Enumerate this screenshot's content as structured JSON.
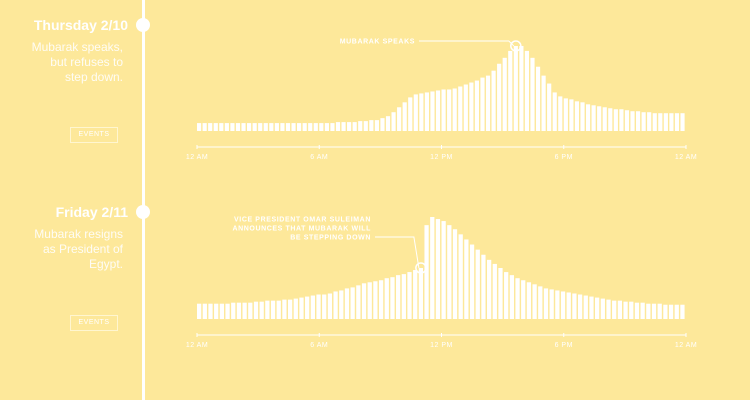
{
  "days": [
    {
      "title": "Thursday 2/10",
      "description": "Mubarak speaks, but refuses to step down.",
      "events_label": "EVENTS"
    },
    {
      "title": "Friday 2/11",
      "description": "Mubarak resigns as President of Egypt.",
      "events_label": "EVENTS"
    }
  ],
  "chart_data": [
    {
      "type": "bar",
      "xlabel": "",
      "ylabel": "",
      "x_tick_labels": [
        "12 AM",
        "6 AM",
        "12 PM",
        "6 PM",
        "12 AM"
      ],
      "values": [
        8,
        8,
        8,
        8,
        8,
        8,
        8,
        8,
        8,
        8,
        8,
        8,
        8,
        8,
        8,
        8,
        8,
        8,
        8,
        8,
        8,
        8,
        8,
        8,
        8,
        9,
        9,
        9,
        9,
        10,
        10,
        11,
        11,
        13,
        15,
        19,
        24,
        29,
        34,
        37,
        38,
        39,
        40,
        41,
        42,
        42,
        43,
        45,
        47,
        49,
        51,
        54,
        56,
        61,
        68,
        74,
        81,
        86,
        86,
        81,
        74,
        65,
        56,
        48,
        39,
        35,
        33,
        32,
        30,
        29,
        27,
        26,
        25,
        24,
        23,
        22,
        22,
        21,
        20,
        20,
        19,
        19,
        18,
        18,
        18,
        18,
        18,
        18
      ],
      "ylim": [
        0,
        90
      ],
      "annotation": {
        "text": "MUBARAK SPEAKS",
        "index": 57
      },
      "colors": {
        "bars": "#ffffff",
        "background": "#fde89a"
      }
    },
    {
      "type": "bar",
      "xlabel": "",
      "ylabel": "",
      "x_tick_labels": [
        "12 AM",
        "6 AM",
        "12 PM",
        "6 PM",
        "12 AM"
      ],
      "values": [
        15,
        15,
        15,
        15,
        15,
        15,
        16,
        16,
        16,
        16,
        17,
        17,
        18,
        18,
        18,
        19,
        19,
        20,
        21,
        22,
        23,
        24,
        24,
        25,
        27,
        28,
        30,
        31,
        33,
        35,
        36,
        37,
        38,
        40,
        41,
        43,
        44,
        46,
        48,
        50,
        92,
        100,
        98,
        96,
        92,
        88,
        83,
        78,
        73,
        68,
        63,
        58,
        54,
        50,
        46,
        43,
        40,
        38,
        36,
        34,
        32,
        30,
        29,
        28,
        27,
        26,
        25,
        24,
        23,
        22,
        21,
        20,
        19,
        18,
        18,
        17,
        17,
        16,
        16,
        15,
        15,
        15,
        14,
        14,
        14,
        14
      ],
      "ylim": [
        0,
        100
      ],
      "annotation": {
        "text_lines": [
          "VICE PRESIDENT OMAR SULEIMAN",
          "ANNOUNCES THAT MUBARAK WILL",
          "BE STEPPING DOWN"
        ],
        "index": 39
      },
      "colors": {
        "bars": "#ffffff",
        "background": "#fde89a"
      }
    }
  ]
}
